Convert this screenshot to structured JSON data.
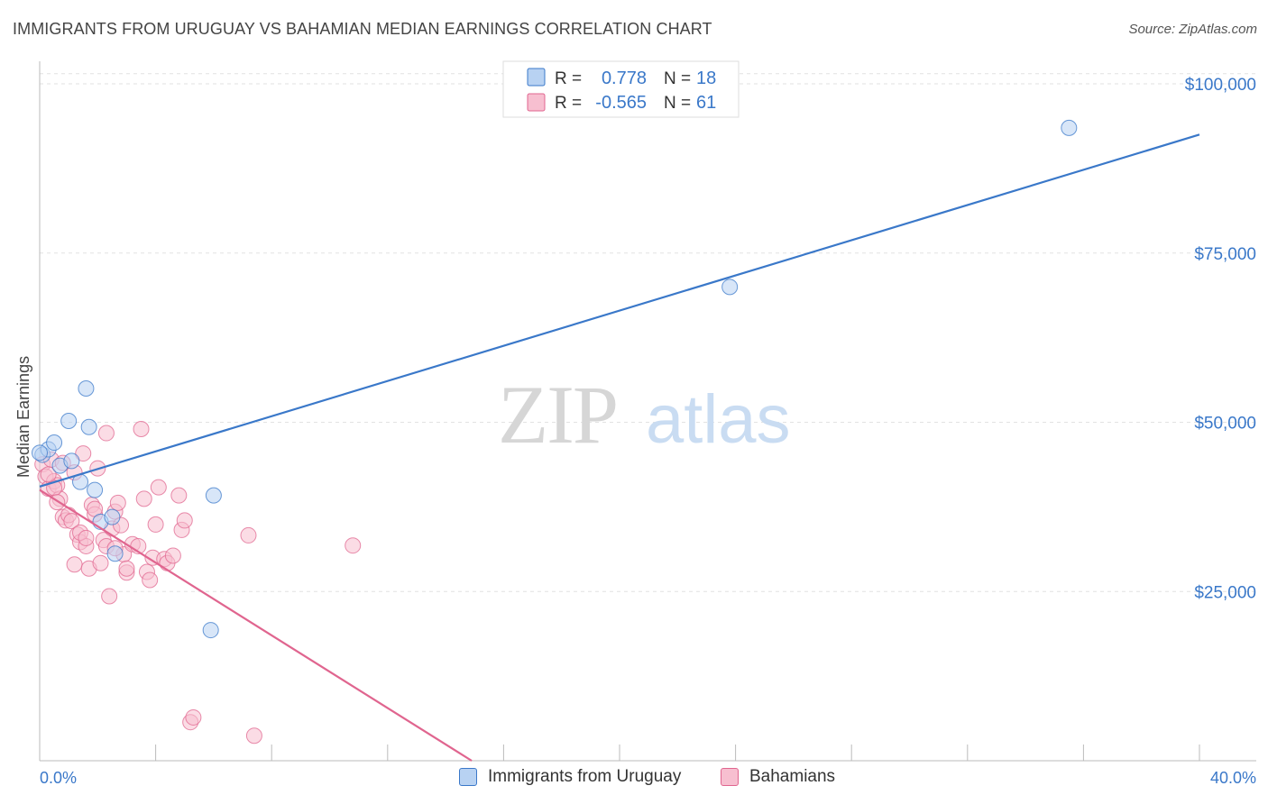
{
  "title": "IMMIGRANTS FROM URUGUAY VS BAHAMIAN MEDIAN EARNINGS CORRELATION CHART",
  "source": "Source: ZipAtlas.com",
  "watermark": {
    "zip": "ZIP",
    "atlas": "atlas"
  },
  "colors": {
    "blue": "#3a78c9",
    "blue_fill": "#b8d2f2",
    "pink": "#e0658f",
    "pink_fill": "#f7bfd0",
    "tick_label": "#3a78c9",
    "grid": "#e2e2e2"
  },
  "legend": {
    "r_label": "R =",
    "n_label": "N =",
    "rows": [
      {
        "series": "blue",
        "r": "0.778",
        "n": "18"
      },
      {
        "series": "pink",
        "r": "-0.565",
        "n": "61"
      }
    ]
  },
  "chart_data": {
    "type": "scatter",
    "xlabel": "",
    "ylabel": "Median Earnings",
    "xlim": [
      0,
      40
    ],
    "ylim": [
      0,
      104000
    ],
    "x_tick_labels": {
      "min": "0.0%",
      "max": "40.0%"
    },
    "y_ticks": [
      25000,
      50000,
      75000,
      100000
    ],
    "y_tick_labels": [
      "$25,000",
      "$50,000",
      "$75,000",
      "$100,000"
    ],
    "grid": true,
    "legend_position": "top-center",
    "series": [
      {
        "name": "Immigrants from Uruguay",
        "color": "blue",
        "r": 0.778,
        "n": 18,
        "trend": {
          "x0": 0,
          "y0": 40500,
          "x1": 40,
          "y1": 92500
        },
        "points": [
          [
            0.1,
            45200
          ],
          [
            0.3,
            46000
          ],
          [
            0.5,
            47000
          ],
          [
            0.7,
            43600
          ],
          [
            1.0,
            50200
          ],
          [
            1.1,
            44300
          ],
          [
            1.4,
            41200
          ],
          [
            1.6,
            55000
          ],
          [
            1.7,
            49300
          ],
          [
            1.9,
            40000
          ],
          [
            2.1,
            35300
          ],
          [
            2.5,
            36000
          ],
          [
            2.6,
            30600
          ],
          [
            6.0,
            39200
          ],
          [
            5.9,
            19300
          ],
          [
            23.8,
            70000
          ],
          [
            35.5,
            93500
          ],
          [
            0.0,
            45500
          ]
        ]
      },
      {
        "name": "Bahamians",
        "color": "pink",
        "r": -0.565,
        "n": 61,
        "trend": {
          "x0": 0,
          "y0": 40000,
          "x1": 14.9,
          "y1": 0
        },
        "points": [
          [
            0.1,
            43800
          ],
          [
            0.2,
            42000
          ],
          [
            0.3,
            40200
          ],
          [
            0.4,
            44500
          ],
          [
            0.5,
            41300
          ],
          [
            0.6,
            40700
          ],
          [
            0.7,
            38700
          ],
          [
            0.8,
            36000
          ],
          [
            0.9,
            35500
          ],
          [
            1.0,
            36300
          ],
          [
            1.1,
            35400
          ],
          [
            1.2,
            29000
          ],
          [
            1.3,
            33400
          ],
          [
            1.4,
            32300
          ],
          [
            1.5,
            45400
          ],
          [
            1.6,
            31700
          ],
          [
            1.7,
            28400
          ],
          [
            1.8,
            37800
          ],
          [
            1.9,
            36400
          ],
          [
            2.0,
            43200
          ],
          [
            2.1,
            29200
          ],
          [
            2.2,
            32600
          ],
          [
            2.3,
            48400
          ],
          [
            2.4,
            24300
          ],
          [
            2.5,
            34300
          ],
          [
            2.6,
            36800
          ],
          [
            2.7,
            38100
          ],
          [
            2.8,
            34800
          ],
          [
            2.9,
            30500
          ],
          [
            3.0,
            27800
          ],
          [
            3.2,
            32000
          ],
          [
            3.4,
            31700
          ],
          [
            3.5,
            49000
          ],
          [
            3.6,
            38700
          ],
          [
            3.7,
            27900
          ],
          [
            3.8,
            26700
          ],
          [
            3.9,
            30000
          ],
          [
            4.0,
            34900
          ],
          [
            4.1,
            40400
          ],
          [
            4.3,
            29800
          ],
          [
            4.4,
            29200
          ],
          [
            4.6,
            30300
          ],
          [
            4.8,
            39200
          ],
          [
            4.9,
            34100
          ],
          [
            5.0,
            35500
          ],
          [
            5.2,
            5700
          ],
          [
            5.3,
            6400
          ],
          [
            7.2,
            33300
          ],
          [
            7.4,
            3700
          ],
          [
            10.8,
            31800
          ],
          [
            0.5,
            40300
          ],
          [
            0.8,
            44000
          ],
          [
            1.2,
            42600
          ],
          [
            1.4,
            33700
          ],
          [
            1.9,
            37200
          ],
          [
            2.3,
            31700
          ],
          [
            2.6,
            31400
          ],
          [
            3.0,
            28400
          ],
          [
            0.3,
            42300
          ],
          [
            0.6,
            38200
          ],
          [
            1.6,
            32900
          ]
        ]
      }
    ]
  }
}
